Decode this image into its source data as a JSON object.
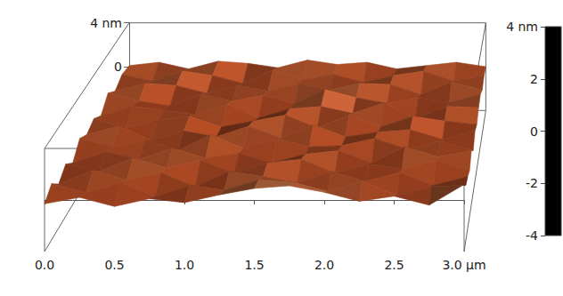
{
  "chart_data": {
    "type": "surface3d",
    "x": [
      0,
      0.25,
      0.5,
      0.75,
      1,
      1.25,
      1.5,
      1.75,
      2,
      2.25,
      2.5,
      2.75,
      3
    ],
    "y": [
      0,
      0.25,
      0.5,
      0.75,
      1,
      1.25,
      1.5,
      1.75,
      2,
      2.25,
      2.5,
      2.75,
      3
    ],
    "z": [
      [
        -0.3,
        0.2,
        -0.5,
        0.1,
        -0.2,
        0.4,
        0.9,
        1.1,
        0.6,
        -0.1,
        0.3,
        -0.4,
        1.2
      ],
      [
        0.4,
        -0.3,
        0.5,
        -0.6,
        0.3,
        -0.1,
        0.7,
        0.5,
        -0.2,
        0.6,
        -0.5,
        0.2,
        0.3
      ],
      [
        -0.5,
        0.6,
        -0.2,
        0.4,
        -0.7,
        0.5,
        0.1,
        -0.4,
        0.5,
        -0.3,
        0.4,
        -0.6,
        0.1
      ],
      [
        0.2,
        -0.4,
        0.7,
        -0.1,
        0.5,
        -0.5,
        0.3,
        0.6,
        -0.5,
        0.2,
        -0.2,
        0.5,
        -0.3
      ],
      [
        -0.6,
        0.3,
        -0.3,
        0.6,
        -0.2,
        0.2,
        -0.6,
        0.1,
        0.4,
        -0.6,
        0.7,
        -0.1,
        0.4
      ],
      [
        0.5,
        -0.2,
        0.4,
        -0.5,
        0.8,
        -0.3,
        0.5,
        -0.2,
        -0.1,
        0.5,
        -0.4,
        0.3,
        -0.5
      ],
      [
        -0.1,
        0.6,
        -0.6,
        0.2,
        -0.3,
        0.6,
        -0.4,
        0.7,
        -0.3,
        0.1,
        0.3,
        -0.5,
        0.2
      ],
      [
        0.3,
        -0.5,
        0.2,
        0.5,
        -0.4,
        0.1,
        0.6,
        -0.5,
        0.6,
        -0.4,
        0.5,
        0.1,
        -0.2
      ],
      [
        -0.4,
        0.4,
        0.1,
        -0.3,
        0.6,
        -0.6,
        0.2,
        0.4,
        -0.2,
        0.7,
        -0.6,
        0.4,
        0.3
      ],
      [
        0.6,
        -0.1,
        -0.5,
        0.5,
        -0.1,
        0.4,
        -0.3,
        0.9,
        0.2,
        -0.3,
        0.2,
        -0.2,
        0.5
      ],
      [
        -0.2,
        0.5,
        0.3,
        -0.4,
        0.3,
        -0.2,
        0.5,
        -0.1,
        0.5,
        0.4,
        -0.5,
        0.6,
        -0.1
      ],
      [
        0.3,
        -0.3,
        0.6,
        0.2,
        -0.5,
        0.7,
        -0.2,
        0.3,
        -0.4,
        0.2,
        0.6,
        -0.3,
        0.2
      ],
      [
        0.1,
        0.4,
        -0.2,
        0.5,
        0.3,
        -0.1,
        0.6,
        0.2,
        0.4,
        -0.2,
        0.1,
        0.4,
        0.0
      ]
    ],
    "xlim": [
      0,
      3
    ],
    "xticks": [
      {
        "value": 0,
        "label": "0.0"
      },
      {
        "value": 0.5,
        "label": "0.5"
      },
      {
        "value": 1,
        "label": "1.0"
      },
      {
        "value": 1.5,
        "label": "1.5"
      },
      {
        "value": 2,
        "label": "2.0"
      },
      {
        "value": 2.5,
        "label": "2.5"
      },
      {
        "value": 3,
        "label": "3.0 µm"
      }
    ],
    "ylim": [
      0,
      3
    ],
    "zlim": [
      -4,
      4
    ],
    "zticks": [
      0,
      {
        "value": 4,
        "label": "4 nm"
      }
    ],
    "colorbar": {
      "range": [
        -4,
        4
      ],
      "ticks": [
        {
          "value": 4,
          "label": "4 nm"
        },
        2,
        0,
        -2,
        -4
      ]
    }
  }
}
